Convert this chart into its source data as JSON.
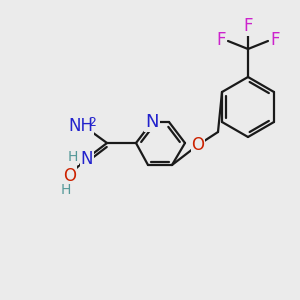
{
  "bg_color": "#ebebeb",
  "bond_color": "#1a1a1a",
  "bond_width": 1.6,
  "atom_colors": {
    "N": "#2222cc",
    "O": "#cc2200",
    "F": "#cc22cc",
    "H": "#559999",
    "C": "#1a1a1a"
  },
  "font_size": 12,
  "font_size_small": 10,
  "figsize": [
    3.0,
    3.0
  ],
  "dpi": 100,
  "xlim": [
    0,
    300
  ],
  "ylim": [
    0,
    300
  ]
}
